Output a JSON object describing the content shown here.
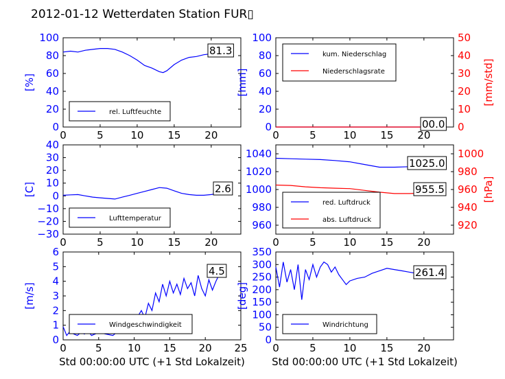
{
  "figure": {
    "title": "2012-01-12 Wetterdaten Station FUR▯"
  },
  "colors": {
    "blue": "#0000ff",
    "red": "#ff0000",
    "black": "#000000"
  },
  "chart_data": [
    {
      "id": "humidity",
      "type": "line",
      "xlim": [
        0,
        24
      ],
      "ylim": [
        0,
        100
      ],
      "xticks": [
        "0",
        "5",
        "10",
        "15",
        "20"
      ],
      "yticks": [
        "0",
        "20",
        "40",
        "60",
        "80",
        "100"
      ],
      "ylabel": "[%]",
      "ylabel_color": "#0000ff",
      "ytick_color": "#0000ff",
      "series": [
        {
          "name": "rel. Luftfeuchte",
          "color": "#0000ff",
          "x": [
            0,
            1,
            2,
            3,
            4,
            5,
            6,
            7,
            8,
            9,
            10,
            11,
            12,
            13,
            13.5,
            14,
            15,
            16,
            17,
            18,
            19,
            20,
            21,
            22
          ],
          "y": [
            84,
            85,
            84,
            86,
            87,
            88,
            88,
            87,
            84,
            80,
            75,
            69,
            66,
            62,
            61,
            63,
            70,
            75,
            78,
            79,
            81,
            82,
            81,
            81.3
          ]
        }
      ],
      "value_label": "81.3",
      "legend": {
        "position": "lower-left"
      }
    },
    {
      "id": "precip",
      "type": "line",
      "xlim": [
        0,
        24
      ],
      "ylim": [
        0,
        100
      ],
      "ylim_right": [
        0,
        50
      ],
      "xticks": [
        "0",
        "5",
        "10",
        "15",
        "20"
      ],
      "yticks": [
        "0",
        "20",
        "40",
        "60",
        "80",
        "100"
      ],
      "yticks_right": [
        "0",
        "10",
        "20",
        "30",
        "40",
        "50"
      ],
      "ylabel": "[mm]",
      "ylabel_color": "#0000ff",
      "ytick_color": "#0000ff",
      "ylabel_right": "[mm/std]",
      "ylabel_right_color": "#ff0000",
      "series": [
        {
          "name": "kum. Niederschlag",
          "color": "#0000ff",
          "x": [
            0,
            22
          ],
          "y": [
            0,
            0
          ]
        },
        {
          "name": "Niederschlagsrate",
          "color": "#ff0000",
          "x": [
            0,
            22
          ],
          "y": [
            0,
            0
          ]
        }
      ],
      "value_label": "00.0",
      "legend": {
        "position": "upper-left"
      }
    },
    {
      "id": "temperature",
      "type": "line",
      "xlim": [
        0,
        24
      ],
      "ylim": [
        -30,
        40
      ],
      "xticks": [
        "0",
        "5",
        "10",
        "15",
        "20"
      ],
      "yticks": [
        "−30",
        "−20",
        "−10",
        "0",
        "10",
        "20",
        "30",
        "40"
      ],
      "ylabel": "[C]",
      "ylabel_color": "#0000ff",
      "ytick_color": "#0000ff",
      "series": [
        {
          "name": "Lufttemperatur",
          "color": "#0000ff",
          "x": [
            0,
            1,
            2,
            3,
            4,
            5,
            6,
            7,
            8,
            9,
            10,
            11,
            12,
            13,
            14,
            15,
            16,
            17,
            18,
            19,
            20,
            21,
            22
          ],
          "y": [
            0.5,
            0.8,
            1.0,
            0.0,
            -1.0,
            -1.5,
            -2.0,
            -2.5,
            -1.0,
            0.5,
            2.0,
            3.5,
            5.0,
            6.5,
            6.0,
            4.0,
            2.0,
            1.0,
            0.5,
            0.5,
            1.0,
            2.0,
            2.6
          ]
        }
      ],
      "value_label": "2.6",
      "legend": {
        "position": "lower-left"
      }
    },
    {
      "id": "pressure",
      "type": "line",
      "xlim": [
        0,
        24
      ],
      "ylim": [
        950,
        1050
      ],
      "ylim_right": [
        910,
        1010
      ],
      "xticks": [
        "0",
        "5",
        "10",
        "15",
        "20"
      ],
      "yticks": [
        "960",
        "980",
        "1000",
        "1020",
        "1040"
      ],
      "yticks_right": [
        "920",
        "940",
        "960",
        "980",
        "1000"
      ],
      "ylabel_right": "[hPa]",
      "ylabel_right_color": "#ff0000",
      "ytick_color": "#0000ff",
      "series": [
        {
          "name": "red. Luftdruck",
          "color": "#0000ff",
          "x": [
            0,
            2,
            4,
            6,
            8,
            10,
            12,
            14,
            16,
            18,
            20,
            22
          ],
          "y": [
            1035,
            1034.5,
            1034,
            1033.5,
            1032.5,
            1031,
            1028,
            1025,
            1025,
            1025.5,
            1025,
            1025
          ]
        },
        {
          "name": "abs. Luftdruck",
          "color": "#ff0000",
          "x": [
            0,
            2,
            4,
            6,
            8,
            10,
            12,
            14,
            16,
            18,
            20,
            22
          ],
          "y": [
            965,
            964.5,
            963,
            962,
            961.5,
            961,
            959,
            957,
            955.5,
            955.5,
            956,
            955.5
          ]
        }
      ],
      "value_label": "1025.0",
      "value_label_2": "955.5",
      "legend": {
        "position": "lower-left"
      }
    },
    {
      "id": "wind_speed",
      "type": "line",
      "xlim": [
        0,
        25
      ],
      "ylim": [
        0,
        6
      ],
      "xticks": [
        "0",
        "5",
        "10",
        "15",
        "20",
        "25"
      ],
      "yticks": [
        "0",
        "1",
        "2",
        "3",
        "4",
        "5",
        "6"
      ],
      "ylabel": "[m/s]",
      "ylabel_color": "#0000ff",
      "ytick_color": "#0000ff",
      "xlabel": "Std 00:00:00 UTC (+1 Std Lokalzeit)",
      "series": [
        {
          "name": "Windgeschwindigkeit",
          "color": "#0000ff",
          "x": [
            0,
            0.5,
            1,
            1.5,
            2,
            2.5,
            3,
            3.5,
            4,
            5,
            6,
            7,
            8,
            9,
            10,
            10.5,
            11,
            11.5,
            12,
            12.5,
            13,
            13.5,
            14,
            14.5,
            15,
            15.5,
            16,
            16.5,
            17,
            17.5,
            18,
            18.5,
            19,
            19.5,
            20,
            20.5,
            21,
            21.5,
            22
          ],
          "y": [
            0.9,
            0.3,
            0.6,
            0.4,
            0.3,
            0.5,
            0.4,
            0.6,
            0.3,
            0.5,
            0.4,
            0.3,
            0.7,
            0.9,
            1.2,
            1.6,
            2.0,
            1.5,
            2.5,
            2.0,
            3.2,
            2.6,
            3.8,
            3.0,
            4.0,
            3.2,
            3.8,
            3.1,
            4.2,
            3.5,
            3.9,
            3.0,
            4.4,
            3.5,
            3.0,
            4.1,
            3.4,
            4.0,
            4.5
          ]
        }
      ],
      "value_label": "4.5",
      "legend": {
        "position": "lower-left"
      }
    },
    {
      "id": "wind_dir",
      "type": "line",
      "xlim": [
        0,
        24
      ],
      "ylim": [
        0,
        350
      ],
      "xticks": [
        "0",
        "5",
        "10",
        "15",
        "20"
      ],
      "yticks": [
        "0",
        "50",
        "100",
        "150",
        "200",
        "250",
        "300",
        "350"
      ],
      "ylabel": "[deg]",
      "ylabel_color": "#0000ff",
      "ytick_color": "#0000ff",
      "xlabel": "Std 00:00:00 UTC (+1 Std Lokalzeit)",
      "series": [
        {
          "name": "Windrichtung",
          "color": "#0000ff",
          "x": [
            0,
            0.5,
            1,
            1.5,
            2,
            2.5,
            3,
            3.5,
            4,
            4.5,
            5,
            5.5,
            6,
            6.5,
            7,
            7.5,
            8,
            8.5,
            9,
            9.5,
            10,
            11,
            12,
            13,
            14,
            15,
            16,
            17,
            18,
            19,
            20,
            21,
            22
          ],
          "y": [
            290,
            210,
            310,
            230,
            280,
            200,
            300,
            160,
            280,
            240,
            300,
            250,
            290,
            310,
            300,
            270,
            290,
            260,
            240,
            220,
            235,
            245,
            250,
            265,
            275,
            285,
            280,
            275,
            270,
            265,
            270,
            255,
            261.4
          ]
        }
      ],
      "value_label": "261.4",
      "legend": {
        "position": "lower-left"
      }
    }
  ]
}
